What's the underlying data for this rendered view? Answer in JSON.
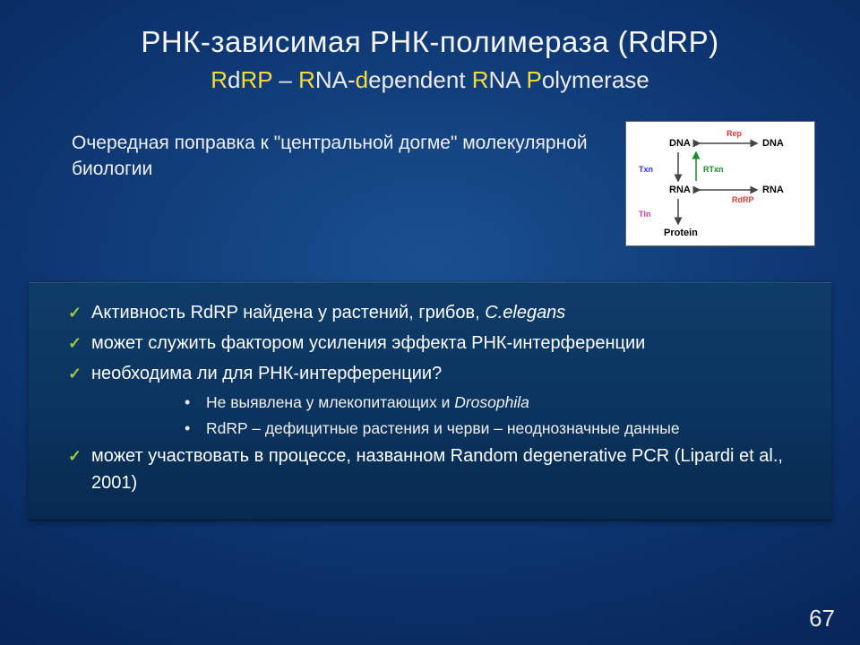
{
  "title": {
    "main": "РНК-зависимая РНК-полимераза (RdRP)",
    "sub_parts": [
      {
        "t": "R",
        "c": "ylw"
      },
      {
        "t": "d",
        "c": "txt"
      },
      {
        "t": "R",
        "c": "ylw"
      },
      {
        "t": "P",
        "c": "ylw"
      },
      {
        "t": " – ",
        "c": "txt"
      },
      {
        "t": "R",
        "c": "ylw"
      },
      {
        "t": "NA-",
        "c": "txt"
      },
      {
        "t": "d",
        "c": "ylw"
      },
      {
        "t": "ependent ",
        "c": "txt"
      },
      {
        "t": "R",
        "c": "ylw"
      },
      {
        "t": "NA ",
        "c": "txt"
      },
      {
        "t": "P",
        "c": "ylw"
      },
      {
        "t": "olymerase",
        "c": "txt"
      }
    ]
  },
  "intro": "Очередная поправка к \"центральной догме\" молекулярной биологии",
  "diagram": {
    "nodes": {
      "dna1": "DNA",
      "dna2": "DNA",
      "rna1": "RNA",
      "rna2": "RNA",
      "protein": "Protein"
    },
    "edges": {
      "rep": {
        "label": "Rep",
        "color": "#d83a3a"
      },
      "txn": {
        "label": "Txn",
        "color": "#2a3ad8"
      },
      "rtxn": {
        "label": "RTxn",
        "color": "#1a8a2a"
      },
      "rdrp": {
        "label": "RdRP",
        "color": "#d83a3a"
      },
      "tln": {
        "label": "Tln",
        "color": "#c23aa8"
      }
    },
    "bg": "#ffffff",
    "text_color": "#000000"
  },
  "bullets": [
    {
      "level": 1,
      "html": "Активность RdRP найдена у растений, грибов, <span class=\"ital\">C.elegans</span>"
    },
    {
      "level": 1,
      "html": "может служить фактором усиления эффекта РНК-интерференции"
    },
    {
      "level": 1,
      "html": "необходима ли для РНК-интерференции?"
    },
    {
      "level": 2,
      "html": "Не выявлена у млекопитающих и <span class=\"ital\">Drosophila</span>"
    },
    {
      "level": 2,
      "html": "RdRP – дефицитные растения и черви – неоднозначные данные"
    },
    {
      "level": 1,
      "html": "может участвовать в процессе, названном Random degenerative PCR (Lipardi et al., 2001)"
    }
  ],
  "page_number": "67",
  "colors": {
    "accent_yellow": "#f7dc3a",
    "check_green": "#9fc93c",
    "box_bg_top": "#0e3c68",
    "box_bg_bottom": "#072a50"
  }
}
